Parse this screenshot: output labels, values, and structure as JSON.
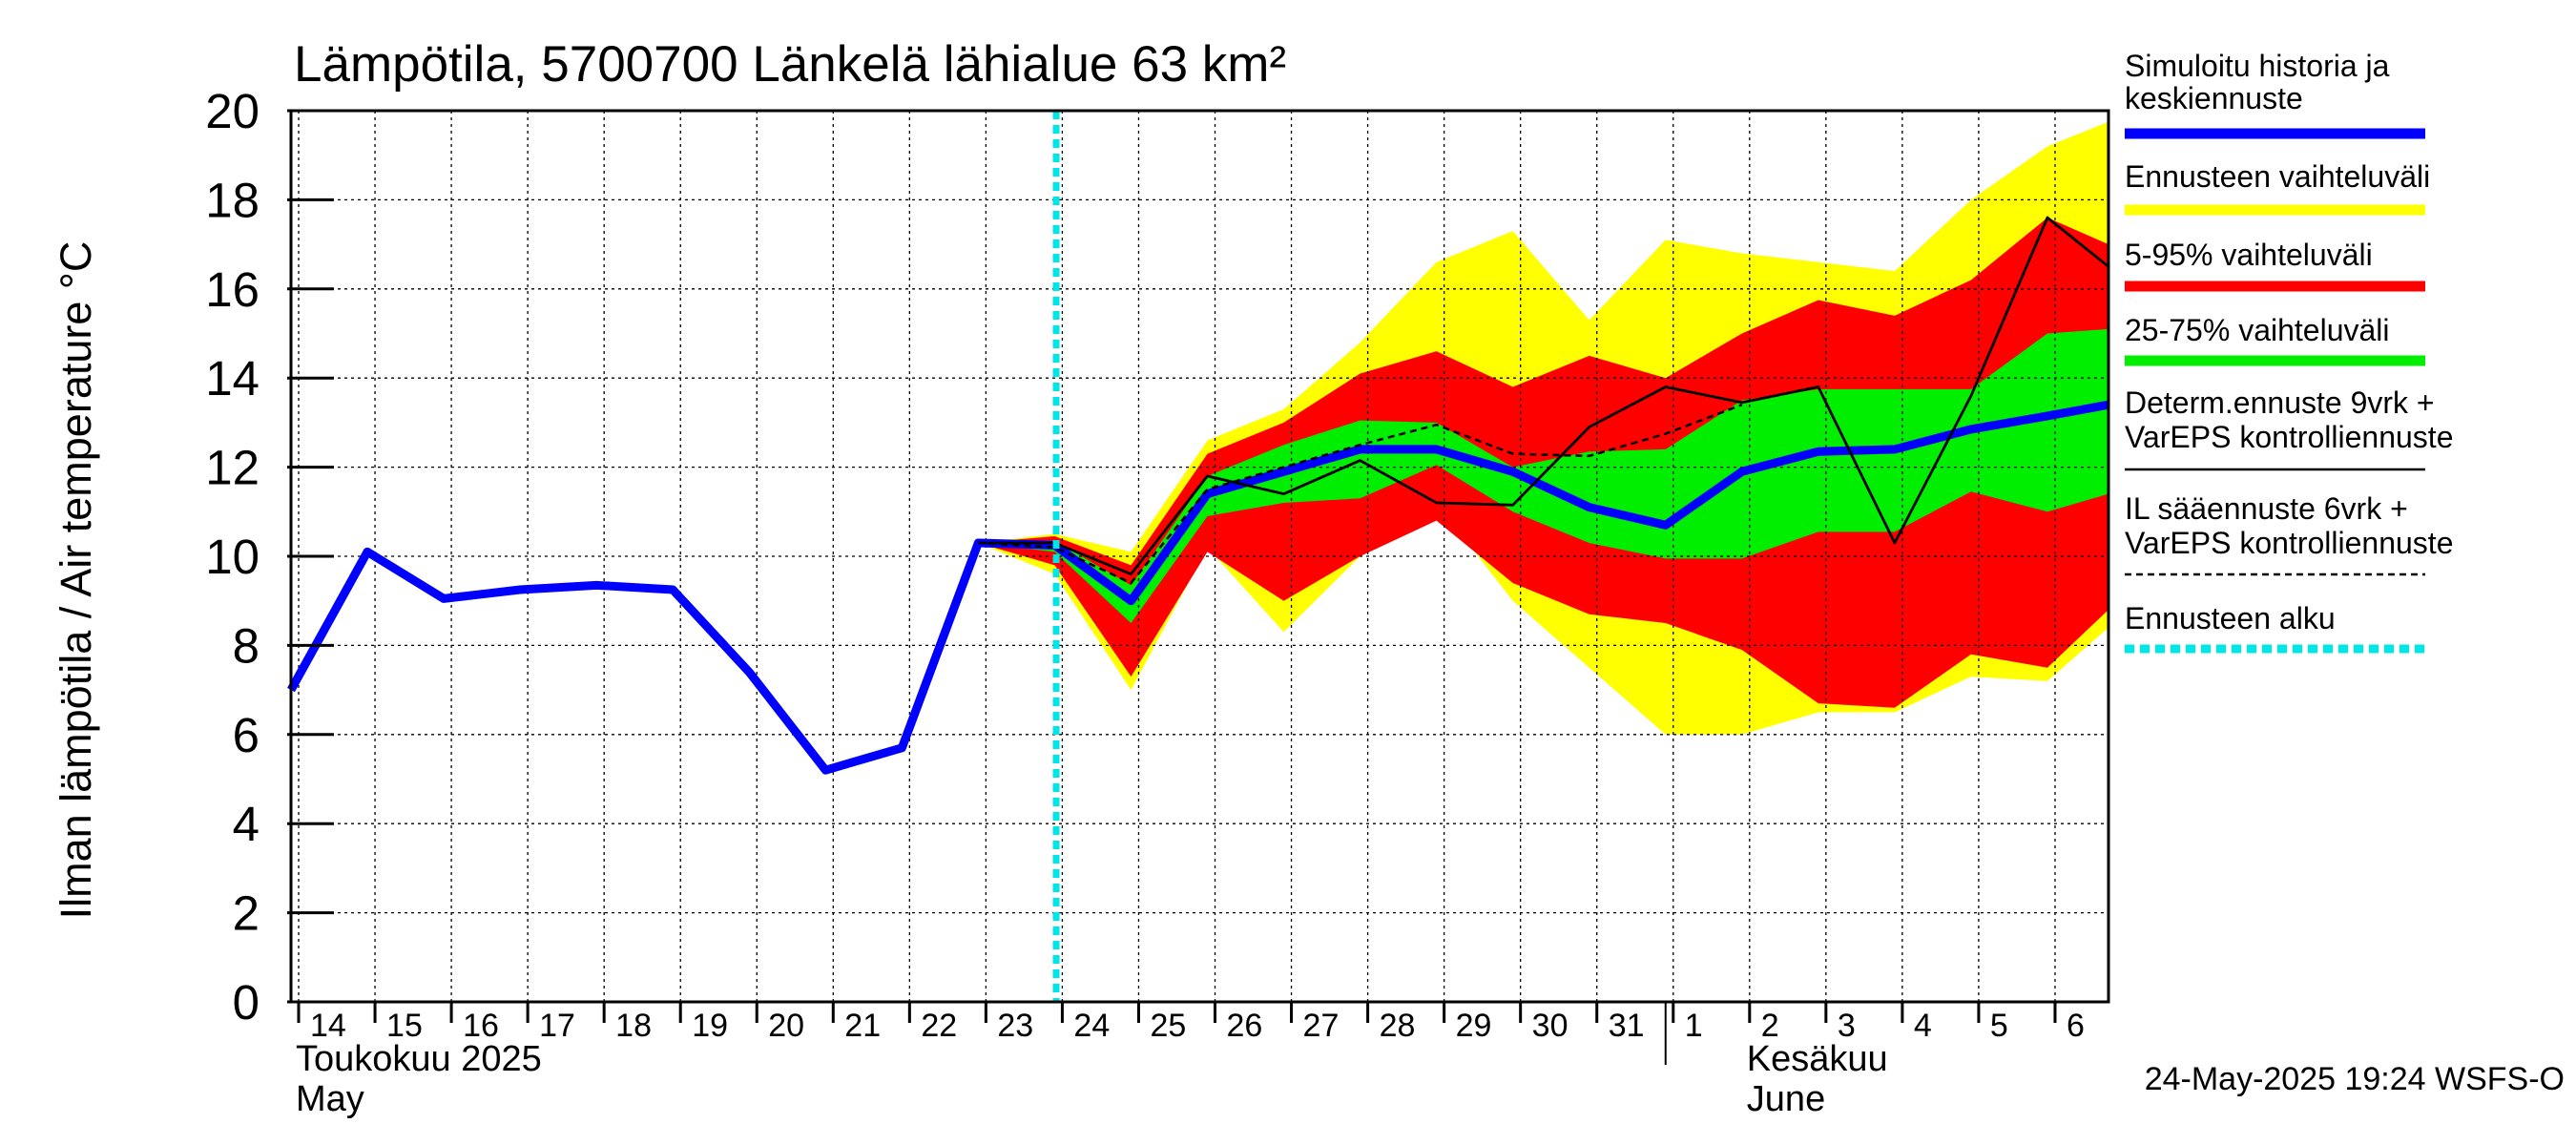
{
  "chart_data": {
    "type": "line",
    "title": "Lämpötila, 5700700 Länkelä lähialue 63 km²",
    "ylabel": "Ilman lämpötila / Air temperature   °C",
    "ylim": [
      0,
      20
    ],
    "yticks": [
      0,
      2,
      4,
      6,
      8,
      10,
      12,
      14,
      16,
      18,
      20
    ],
    "x_day_range": [
      13.9,
      37.7
    ],
    "day_ticks": [
      {
        "day": 14,
        "label": "14"
      },
      {
        "day": 15,
        "label": "15"
      },
      {
        "day": 16,
        "label": "16"
      },
      {
        "day": 17,
        "label": "17"
      },
      {
        "day": 18,
        "label": "18"
      },
      {
        "day": 19,
        "label": "19"
      },
      {
        "day": 20,
        "label": "20"
      },
      {
        "day": 21,
        "label": "21"
      },
      {
        "day": 22,
        "label": "22"
      },
      {
        "day": 23,
        "label": "23"
      },
      {
        "day": 24,
        "label": "24"
      },
      {
        "day": 25,
        "label": "25"
      },
      {
        "day": 26,
        "label": "26"
      },
      {
        "day": 27,
        "label": "27"
      },
      {
        "day": 28,
        "label": "28"
      },
      {
        "day": 29,
        "label": "29"
      },
      {
        "day": 30,
        "label": "30"
      },
      {
        "day": 31,
        "label": "31"
      },
      {
        "day": 32,
        "label": "1"
      },
      {
        "day": 33,
        "label": "2"
      },
      {
        "day": 34,
        "label": "3"
      },
      {
        "day": 35,
        "label": "4"
      },
      {
        "day": 36,
        "label": "5"
      },
      {
        "day": 37,
        "label": "6"
      }
    ],
    "month_labels": [
      {
        "day": 14,
        "fi": "Toukokuu  2025",
        "en": "May"
      },
      {
        "day": 33,
        "fi": "Kesäkuu",
        "en": "June"
      }
    ],
    "month_divider_day": 31.9,
    "forecast_start_day": 23.92,
    "series": [
      {
        "name": "Simuloitu historia ja keskiennuste",
        "color": "#0000ff",
        "points": [
          [
            13.9,
            7.0
          ],
          [
            14.9,
            10.1
          ],
          [
            15.9,
            9.05
          ],
          [
            16.9,
            9.25
          ],
          [
            17.9,
            9.35
          ],
          [
            18.9,
            9.25
          ],
          [
            19.9,
            7.4
          ],
          [
            20.9,
            5.2
          ],
          [
            21.9,
            5.7
          ],
          [
            22.9,
            10.3
          ],
          [
            23.9,
            10.25
          ],
          [
            24.9,
            9.0
          ],
          [
            25.9,
            11.4
          ],
          [
            26.9,
            11.9
          ],
          [
            27.9,
            12.4
          ],
          [
            28.9,
            12.4
          ],
          [
            29.9,
            11.9
          ],
          [
            30.9,
            11.1
          ],
          [
            31.9,
            10.7
          ],
          [
            32.9,
            11.9
          ],
          [
            33.9,
            12.35
          ],
          [
            34.9,
            12.4
          ],
          [
            35.9,
            12.85
          ],
          [
            36.9,
            13.15
          ],
          [
            37.7,
            13.4
          ]
        ]
      },
      {
        "name": "Determ.ennuste 9vrk + VarEPS kontrolliennuste",
        "color": "#000000",
        "points": [
          [
            22.9,
            10.3
          ],
          [
            23.9,
            10.3
          ],
          [
            24.9,
            9.6
          ],
          [
            25.9,
            11.8
          ],
          [
            26.9,
            11.4
          ],
          [
            27.9,
            12.15
          ],
          [
            28.9,
            11.2
          ],
          [
            29.9,
            11.15
          ],
          [
            30.9,
            12.9
          ],
          [
            31.9,
            13.8
          ],
          [
            32.9,
            13.45
          ],
          [
            33.9,
            13.8
          ],
          [
            34.9,
            10.3
          ],
          [
            35.9,
            13.6
          ],
          [
            36.9,
            17.6
          ],
          [
            37.7,
            16.5
          ]
        ]
      },
      {
        "name": "IL sääennuste 6vrk + VarEPS kontrolliennuste",
        "color": "#000000",
        "dashed": true,
        "points": [
          [
            22.9,
            10.3
          ],
          [
            23.9,
            10.2
          ],
          [
            24.9,
            9.4
          ],
          [
            25.9,
            11.5
          ],
          [
            26.9,
            12.0
          ],
          [
            27.9,
            12.5
          ],
          [
            28.9,
            12.95
          ],
          [
            29.9,
            12.3
          ],
          [
            30.9,
            12.25
          ],
          [
            31.9,
            12.75
          ],
          [
            32.9,
            13.4
          ]
        ]
      }
    ],
    "bands": [
      {
        "name": "Ennusteen vaihteluväli",
        "color": "#ffff00",
        "x": [
          22.9,
          23.9,
          24.9,
          25.9,
          26.9,
          27.9,
          28.9,
          29.9,
          30.9,
          31.9,
          32.9,
          33.9,
          34.9,
          35.9,
          36.9,
          37.7
        ],
        "upper": [
          10.3,
          10.5,
          10.1,
          12.6,
          13.3,
          14.8,
          16.6,
          17.3,
          15.3,
          17.1,
          16.8,
          16.6,
          16.4,
          18.0,
          19.2,
          19.75
        ],
        "lower": [
          10.3,
          9.6,
          7.0,
          10.2,
          8.3,
          10.0,
          11.2,
          9.0,
          7.5,
          6.0,
          6.0,
          6.5,
          6.5,
          7.3,
          7.2,
          8.4
        ]
      },
      {
        "name": "5-95% vaihteluväli",
        "color": "#ff0000",
        "x": [
          22.9,
          23.9,
          24.9,
          25.9,
          26.9,
          27.9,
          28.9,
          29.9,
          30.9,
          31.9,
          32.9,
          33.9,
          34.9,
          35.9,
          36.9,
          37.7
        ],
        "upper": [
          10.3,
          10.45,
          9.8,
          12.3,
          13.0,
          14.1,
          14.6,
          13.8,
          14.5,
          14.0,
          15.0,
          15.75,
          15.4,
          16.2,
          17.6,
          17.0
        ],
        "lower": [
          10.3,
          9.8,
          7.3,
          10.1,
          9.0,
          10.0,
          10.8,
          9.4,
          8.7,
          8.5,
          7.9,
          6.7,
          6.6,
          7.8,
          7.5,
          8.8
        ]
      },
      {
        "name": "25-75% vaihteluväli",
        "color": "#00ee00",
        "x": [
          22.9,
          23.9,
          24.9,
          25.9,
          26.9,
          27.9,
          28.9,
          29.9,
          30.9,
          31.9,
          32.9,
          33.9,
          34.9,
          35.9,
          36.9,
          37.7
        ],
        "upper": [
          10.3,
          10.35,
          9.35,
          11.8,
          12.5,
          13.05,
          13.0,
          12.0,
          12.35,
          12.4,
          13.5,
          13.75,
          13.75,
          13.75,
          15.0,
          15.1
        ],
        "lower": [
          10.3,
          10.1,
          8.5,
          10.9,
          11.2,
          11.3,
          12.05,
          11.0,
          10.3,
          9.95,
          9.95,
          10.55,
          10.55,
          11.45,
          11.0,
          11.4
        ]
      }
    ],
    "legend": [
      {
        "text": "Simuloitu historia ja\nkeskiennuste",
        "color": "#0000ff",
        "style": "thick"
      },
      {
        "text": "Ennusteen vaihteluväli",
        "color": "#ffff00",
        "style": "thick"
      },
      {
        "text": "5-95% vaihteluväli",
        "color": "#ff0000",
        "style": "thick"
      },
      {
        "text": "25-75% vaihteluväli",
        "color": "#00ee00",
        "style": "thick"
      },
      {
        "text": "Determ.ennuste 9vrk +\nVarEPS kontrolliennuste",
        "color": "#000000",
        "style": "thin"
      },
      {
        "text": "IL sääennuste 6vrk  +\n  VarEPS kontrolliennuste",
        "color": "#000000",
        "style": "dashed"
      },
      {
        "text": "Ennusteen alku",
        "color": "#00e5e5",
        "style": "dotted"
      }
    ],
    "timestamp": "24-May-2025 19:24 WSFS-O"
  }
}
